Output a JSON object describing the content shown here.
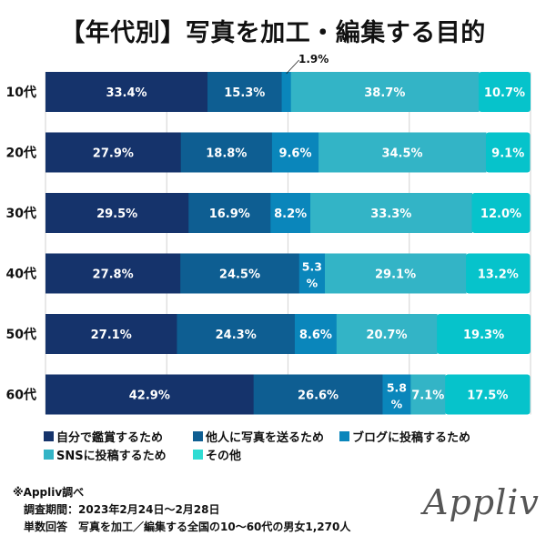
{
  "title": "【年代別】写真を加工・編集する目的",
  "chart_data": {
    "type": "bar",
    "orientation": "horizontal",
    "stacked": true,
    "title": "【年代別】写真を加工・編集する目的",
    "categories": [
      "10代",
      "20代",
      "30代",
      "40代",
      "50代",
      "60代"
    ],
    "series": [
      {
        "name": "自分で鑑賞するため",
        "color": "#15336b",
        "values": [
          33.4,
          27.9,
          29.5,
          27.8,
          27.1,
          42.9
        ]
      },
      {
        "name": "他人に写真を送るため",
        "color": "#0e5e92",
        "values": [
          15.3,
          18.8,
          16.9,
          24.5,
          24.3,
          26.6
        ]
      },
      {
        "name": "ブログに投稿するため",
        "color": "#0a86bb",
        "values": [
          1.9,
          9.6,
          8.2,
          5.3,
          8.6,
          5.8
        ]
      },
      {
        "name": "SNSに投稿するため",
        "color": "#33b4c6",
        "values": [
          38.7,
          34.5,
          33.3,
          29.1,
          20.7,
          7.1
        ]
      },
      {
        "name": "その他",
        "color": "#06c3cb",
        "values": [
          10.7,
          9.1,
          12.0,
          13.2,
          19.3,
          17.5
        ]
      }
    ],
    "xlim": [
      0,
      100
    ],
    "grid": true,
    "legend_position": "bottom",
    "callout": "1.9%"
  },
  "legend": [
    {
      "label": "自分で鑑賞するため",
      "color": "#15336b"
    },
    {
      "label": "他人に写真を送るため",
      "color": "#0e5e92"
    },
    {
      "label": "ブログに投稿するため",
      "color": "#0a86bb"
    },
    {
      "label": "SNSに投稿するため",
      "color": "#33b4c6"
    },
    {
      "label": "その他",
      "color": "#2fdcd3"
    }
  ],
  "notes": {
    "source": "※Appliv調べ",
    "period": "調査期間：2023年2月24日～2月28日",
    "sample": "単数回答　写真を加工／編集する全国の10～60代の男女1,270人"
  },
  "logo": "Appliv"
}
